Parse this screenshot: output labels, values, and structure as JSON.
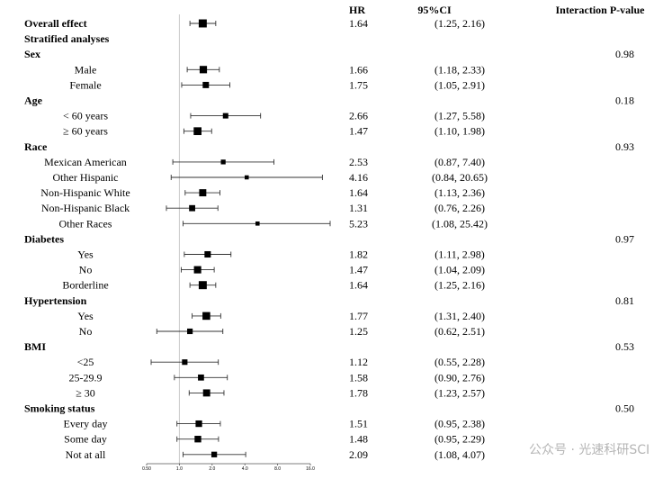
{
  "chart_data": {
    "type": "forest",
    "columns": {
      "hr": "HR",
      "ci": "95%CI",
      "p": "Interaction P-value"
    },
    "x_scale": "log",
    "xlim": [
      0.5,
      16.0
    ],
    "reference_line": 1.0,
    "x_ticks": [
      "0.50",
      "1.0",
      "2.0",
      "4.0",
      "8.0",
      "16.0"
    ],
    "rows": [
      {
        "label": "Overall effect",
        "kind": "header",
        "hr": 1.64,
        "lo": 1.25,
        "hi": 2.16,
        "hr_text": "1.64",
        "ci_text": "(1.25, 2.16)",
        "p": ""
      },
      {
        "label": "Stratified analyses",
        "kind": "header",
        "hr": null,
        "hr_text": "",
        "ci_text": "",
        "p": ""
      },
      {
        "label": "Sex",
        "kind": "header",
        "hr": null,
        "hr_text": "",
        "ci_text": "",
        "p": "0.98"
      },
      {
        "label": "Male",
        "kind": "sub",
        "hr": 1.66,
        "lo": 1.18,
        "hi": 2.33,
        "hr_text": "1.66",
        "ci_text": "(1.18, 2.33)",
        "p": ""
      },
      {
        "label": "Female",
        "kind": "sub",
        "hr": 1.75,
        "lo": 1.05,
        "hi": 2.91,
        "hr_text": "1.75",
        "ci_text": "(1.05, 2.91)",
        "p": ""
      },
      {
        "label": "Age",
        "kind": "header",
        "hr": null,
        "hr_text": "",
        "ci_text": "",
        "p": "0.18"
      },
      {
        "label": "< 60 years",
        "kind": "sub",
        "hr": 2.66,
        "lo": 1.27,
        "hi": 5.58,
        "hr_text": "2.66",
        "ci_text": "(1.27, 5.58)",
        "p": ""
      },
      {
        "label": "≥ 60 years",
        "kind": "sub",
        "hr": 1.47,
        "lo": 1.1,
        "hi": 1.98,
        "hr_text": "1.47",
        "ci_text": "(1.10, 1.98)",
        "p": ""
      },
      {
        "label": "Race",
        "kind": "header",
        "hr": null,
        "hr_text": "",
        "ci_text": "",
        "p": "0.93"
      },
      {
        "label": "Mexican American",
        "kind": "sub",
        "hr": 2.53,
        "lo": 0.87,
        "hi": 7.4,
        "hr_text": "2.53",
        "ci_text": "(0.87, 7.40)",
        "p": ""
      },
      {
        "label": "Other Hispanic",
        "kind": "sub",
        "hr": 4.16,
        "lo": 0.84,
        "hi": 20.65,
        "hr_text": "4.16",
        "ci_text": "(0.84, 20.65)",
        "p": ""
      },
      {
        "label": "Non-Hispanic White",
        "kind": "sub",
        "hr": 1.64,
        "lo": 1.13,
        "hi": 2.36,
        "hr_text": "1.64",
        "ci_text": "(1.13, 2.36)",
        "p": ""
      },
      {
        "label": "Non-Hispanic Black",
        "kind": "sub",
        "hr": 1.31,
        "lo": 0.76,
        "hi": 2.26,
        "hr_text": "1.31",
        "ci_text": "(0.76, 2.26)",
        "p": ""
      },
      {
        "label": "Other Races",
        "kind": "sub",
        "hr": 5.23,
        "lo": 1.08,
        "hi": 25.42,
        "hr_text": "5.23",
        "ci_text": "(1.08, 25.42)",
        "p": ""
      },
      {
        "label": "Diabetes",
        "kind": "header",
        "hr": null,
        "hr_text": "",
        "ci_text": "",
        "p": "0.97"
      },
      {
        "label": "Yes",
        "kind": "sub",
        "hr": 1.82,
        "lo": 1.11,
        "hi": 2.98,
        "hr_text": "1.82",
        "ci_text": "(1.11, 2.98)",
        "p": ""
      },
      {
        "label": "No",
        "kind": "sub",
        "hr": 1.47,
        "lo": 1.04,
        "hi": 2.09,
        "hr_text": "1.47",
        "ci_text": "(1.04, 2.09)",
        "p": ""
      },
      {
        "label": "Borderline",
        "kind": "sub",
        "hr": 1.64,
        "lo": 1.25,
        "hi": 2.16,
        "hr_text": "1.64",
        "ci_text": "(1.25, 2.16)",
        "p": ""
      },
      {
        "label": "Hypertension",
        "kind": "header",
        "hr": null,
        "hr_text": "",
        "ci_text": "",
        "p": "0.81"
      },
      {
        "label": "Yes",
        "kind": "sub",
        "hr": 1.77,
        "lo": 1.31,
        "hi": 2.4,
        "hr_text": "1.77",
        "ci_text": "(1.31, 2.40)",
        "p": ""
      },
      {
        "label": "No",
        "kind": "sub",
        "hr": 1.25,
        "lo": 0.62,
        "hi": 2.51,
        "hr_text": "1.25",
        "ci_text": "(0.62, 2.51)",
        "p": ""
      },
      {
        "label": "BMI",
        "kind": "header",
        "hr": null,
        "hr_text": "",
        "ci_text": "",
        "p": "0.53"
      },
      {
        "label": "<25",
        "kind": "sub",
        "hr": 1.12,
        "lo": 0.55,
        "hi": 2.28,
        "hr_text": "1.12",
        "ci_text": "(0.55, 2.28)",
        "p": ""
      },
      {
        "label": "25-29.9",
        "kind": "sub",
        "hr": 1.58,
        "lo": 0.9,
        "hi": 2.76,
        "hr_text": "1.58",
        "ci_text": "(0.90, 2.76)",
        "p": ""
      },
      {
        "label": "≥ 30",
        "kind": "sub",
        "hr": 1.78,
        "lo": 1.23,
        "hi": 2.57,
        "hr_text": "1.78",
        "ci_text": "(1.23, 2.57)",
        "p": ""
      },
      {
        "label": "Smoking status",
        "kind": "header",
        "hr": null,
        "hr_text": "",
        "ci_text": "",
        "p": "0.50"
      },
      {
        "label": "Every day",
        "kind": "sub",
        "hr": 1.51,
        "lo": 0.95,
        "hi": 2.38,
        "hr_text": "1.51",
        "ci_text": "(0.95, 2.38)",
        "p": ""
      },
      {
        "label": "Some day",
        "kind": "sub",
        "hr": 1.48,
        "lo": 0.95,
        "hi": 2.29,
        "hr_text": "1.48",
        "ci_text": "(0.95, 2.29)",
        "p": ""
      },
      {
        "label": "Not at all",
        "kind": "sub",
        "hr": 2.09,
        "lo": 1.08,
        "hi": 4.07,
        "hr_text": "2.09",
        "ci_text": "(1.08, 4.07)",
        "p": ""
      }
    ]
  },
  "watermark": "公众号 · 光速科研SCI"
}
